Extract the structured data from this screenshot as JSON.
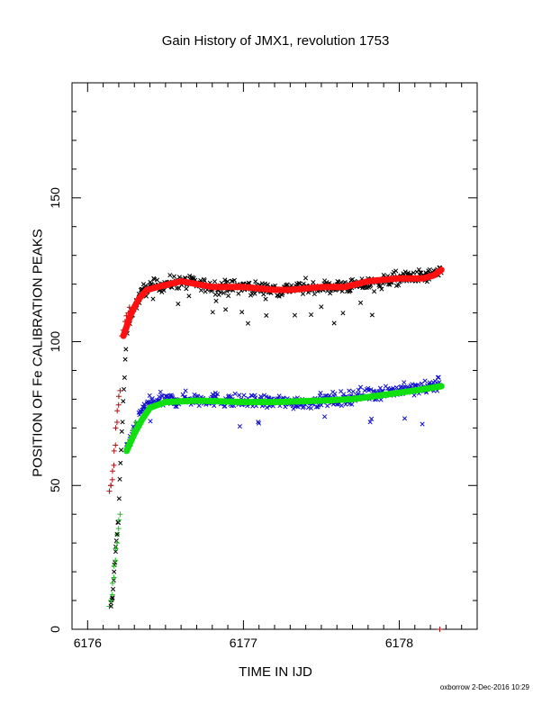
{
  "chart_data": {
    "type": "scatter",
    "title": "Gain History of JMX1, revolution 1753",
    "xlabel": "TIME IN IJD",
    "ylabel": "POSITION OF Fe CALIBRATION PEAKS",
    "xlim": [
      6175.9,
      6178.5
    ],
    "ylim": [
      0,
      190
    ],
    "x_ticks": [
      6176,
      6177,
      6178
    ],
    "x_tick_labels": [
      "6176",
      "6177",
      "6178"
    ],
    "y_ticks": [
      0,
      50,
      100,
      150
    ],
    "y_tick_labels": [
      "0",
      "50",
      "100",
      "150"
    ],
    "grid": false,
    "legend": "none",
    "series": [
      {
        "marker": "x",
        "color": "#000000",
        "x_range": [
          6176.15,
          6178.27
        ],
        "points": [
          [
            6176.15,
            8
          ],
          [
            6176.16,
            11
          ],
          [
            6176.17,
            20
          ],
          [
            6176.18,
            27
          ],
          [
            6176.19,
            33
          ],
          [
            6176.25,
            103
          ],
          [
            6176.28,
            110
          ],
          [
            6176.32,
            114
          ],
          [
            6176.36,
            118
          ],
          [
            6176.4,
            119
          ],
          [
            6176.6,
            121
          ],
          [
            6176.8,
            119
          ],
          [
            6177.0,
            119
          ],
          [
            6177.2,
            118
          ],
          [
            6177.4,
            119
          ],
          [
            6177.6,
            119
          ],
          [
            6177.8,
            120
          ],
          [
            6178.0,
            122
          ],
          [
            6178.2,
            123
          ],
          [
            6178.27,
            124
          ]
        ],
        "scatter_amplitude": 4.5
      },
      {
        "marker": "+",
        "color": "#b01010",
        "points": [
          [
            6176.14,
            48
          ],
          [
            6176.15,
            50
          ],
          [
            6176.16,
            55
          ],
          [
            6176.17,
            62
          ],
          [
            6176.18,
            70
          ],
          [
            6176.19,
            76
          ],
          [
            6176.2,
            81
          ],
          [
            6176.22,
            102
          ],
          [
            6176.24,
            107
          ],
          [
            6176.26,
            110
          ],
          [
            6178.26,
            0
          ]
        ]
      },
      {
        "marker": "x",
        "color": "#1010d0",
        "x_range": [
          6176.25,
          6178.27
        ],
        "points": [
          [
            6176.25,
            63
          ],
          [
            6176.3,
            70
          ],
          [
            6176.35,
            76
          ],
          [
            6176.4,
            79
          ],
          [
            6176.6,
            80
          ],
          [
            6176.8,
            80
          ],
          [
            6177.0,
            79
          ],
          [
            6177.2,
            79
          ],
          [
            6177.4,
            79
          ],
          [
            6177.6,
            80
          ],
          [
            6177.8,
            82
          ],
          [
            6178.0,
            83
          ],
          [
            6178.2,
            84
          ],
          [
            6178.27,
            86
          ]
        ],
        "scatter_amplitude": 4.5
      },
      {
        "marker": "+",
        "color": "#20c020",
        "points": [
          [
            6176.14,
            8
          ],
          [
            6176.15,
            10
          ],
          [
            6176.16,
            16
          ],
          [
            6176.17,
            22
          ],
          [
            6176.18,
            28
          ],
          [
            6176.19,
            33
          ],
          [
            6176.2,
            38
          ],
          [
            6176.25,
            63
          ],
          [
            6176.28,
            67
          ],
          [
            6176.3,
            70
          ]
        ]
      },
      {
        "marker": "line",
        "color": "#ff1010",
        "points": [
          [
            6176.23,
            102
          ],
          [
            6176.28,
            110
          ],
          [
            6176.33,
            115
          ],
          [
            6176.38,
            118
          ],
          [
            6176.45,
            119
          ],
          [
            6176.6,
            121
          ],
          [
            6176.7,
            120
          ],
          [
            6176.8,
            119
          ],
          [
            6177.0,
            119
          ],
          [
            6177.2,
            118
          ],
          [
            6177.3,
            118
          ],
          [
            6177.5,
            119
          ],
          [
            6177.65,
            119
          ],
          [
            6177.8,
            121
          ],
          [
            6178.0,
            122
          ],
          [
            6178.15,
            122
          ],
          [
            6178.22,
            123
          ],
          [
            6178.27,
            125
          ]
        ]
      },
      {
        "marker": "line",
        "color": "#10e010",
        "points": [
          [
            6176.25,
            62
          ],
          [
            6176.3,
            68
          ],
          [
            6176.35,
            73
          ],
          [
            6176.4,
            77
          ],
          [
            6176.5,
            79
          ],
          [
            6176.7,
            79.5
          ],
          [
            6177.0,
            79
          ],
          [
            6177.2,
            79
          ],
          [
            6177.5,
            79.5
          ],
          [
            6177.7,
            80
          ],
          [
            6177.9,
            81.5
          ],
          [
            6178.1,
            83
          ],
          [
            6178.27,
            84.5
          ]
        ]
      }
    ]
  },
  "footer": "oxborrow 2-Dec-2016 10:29"
}
